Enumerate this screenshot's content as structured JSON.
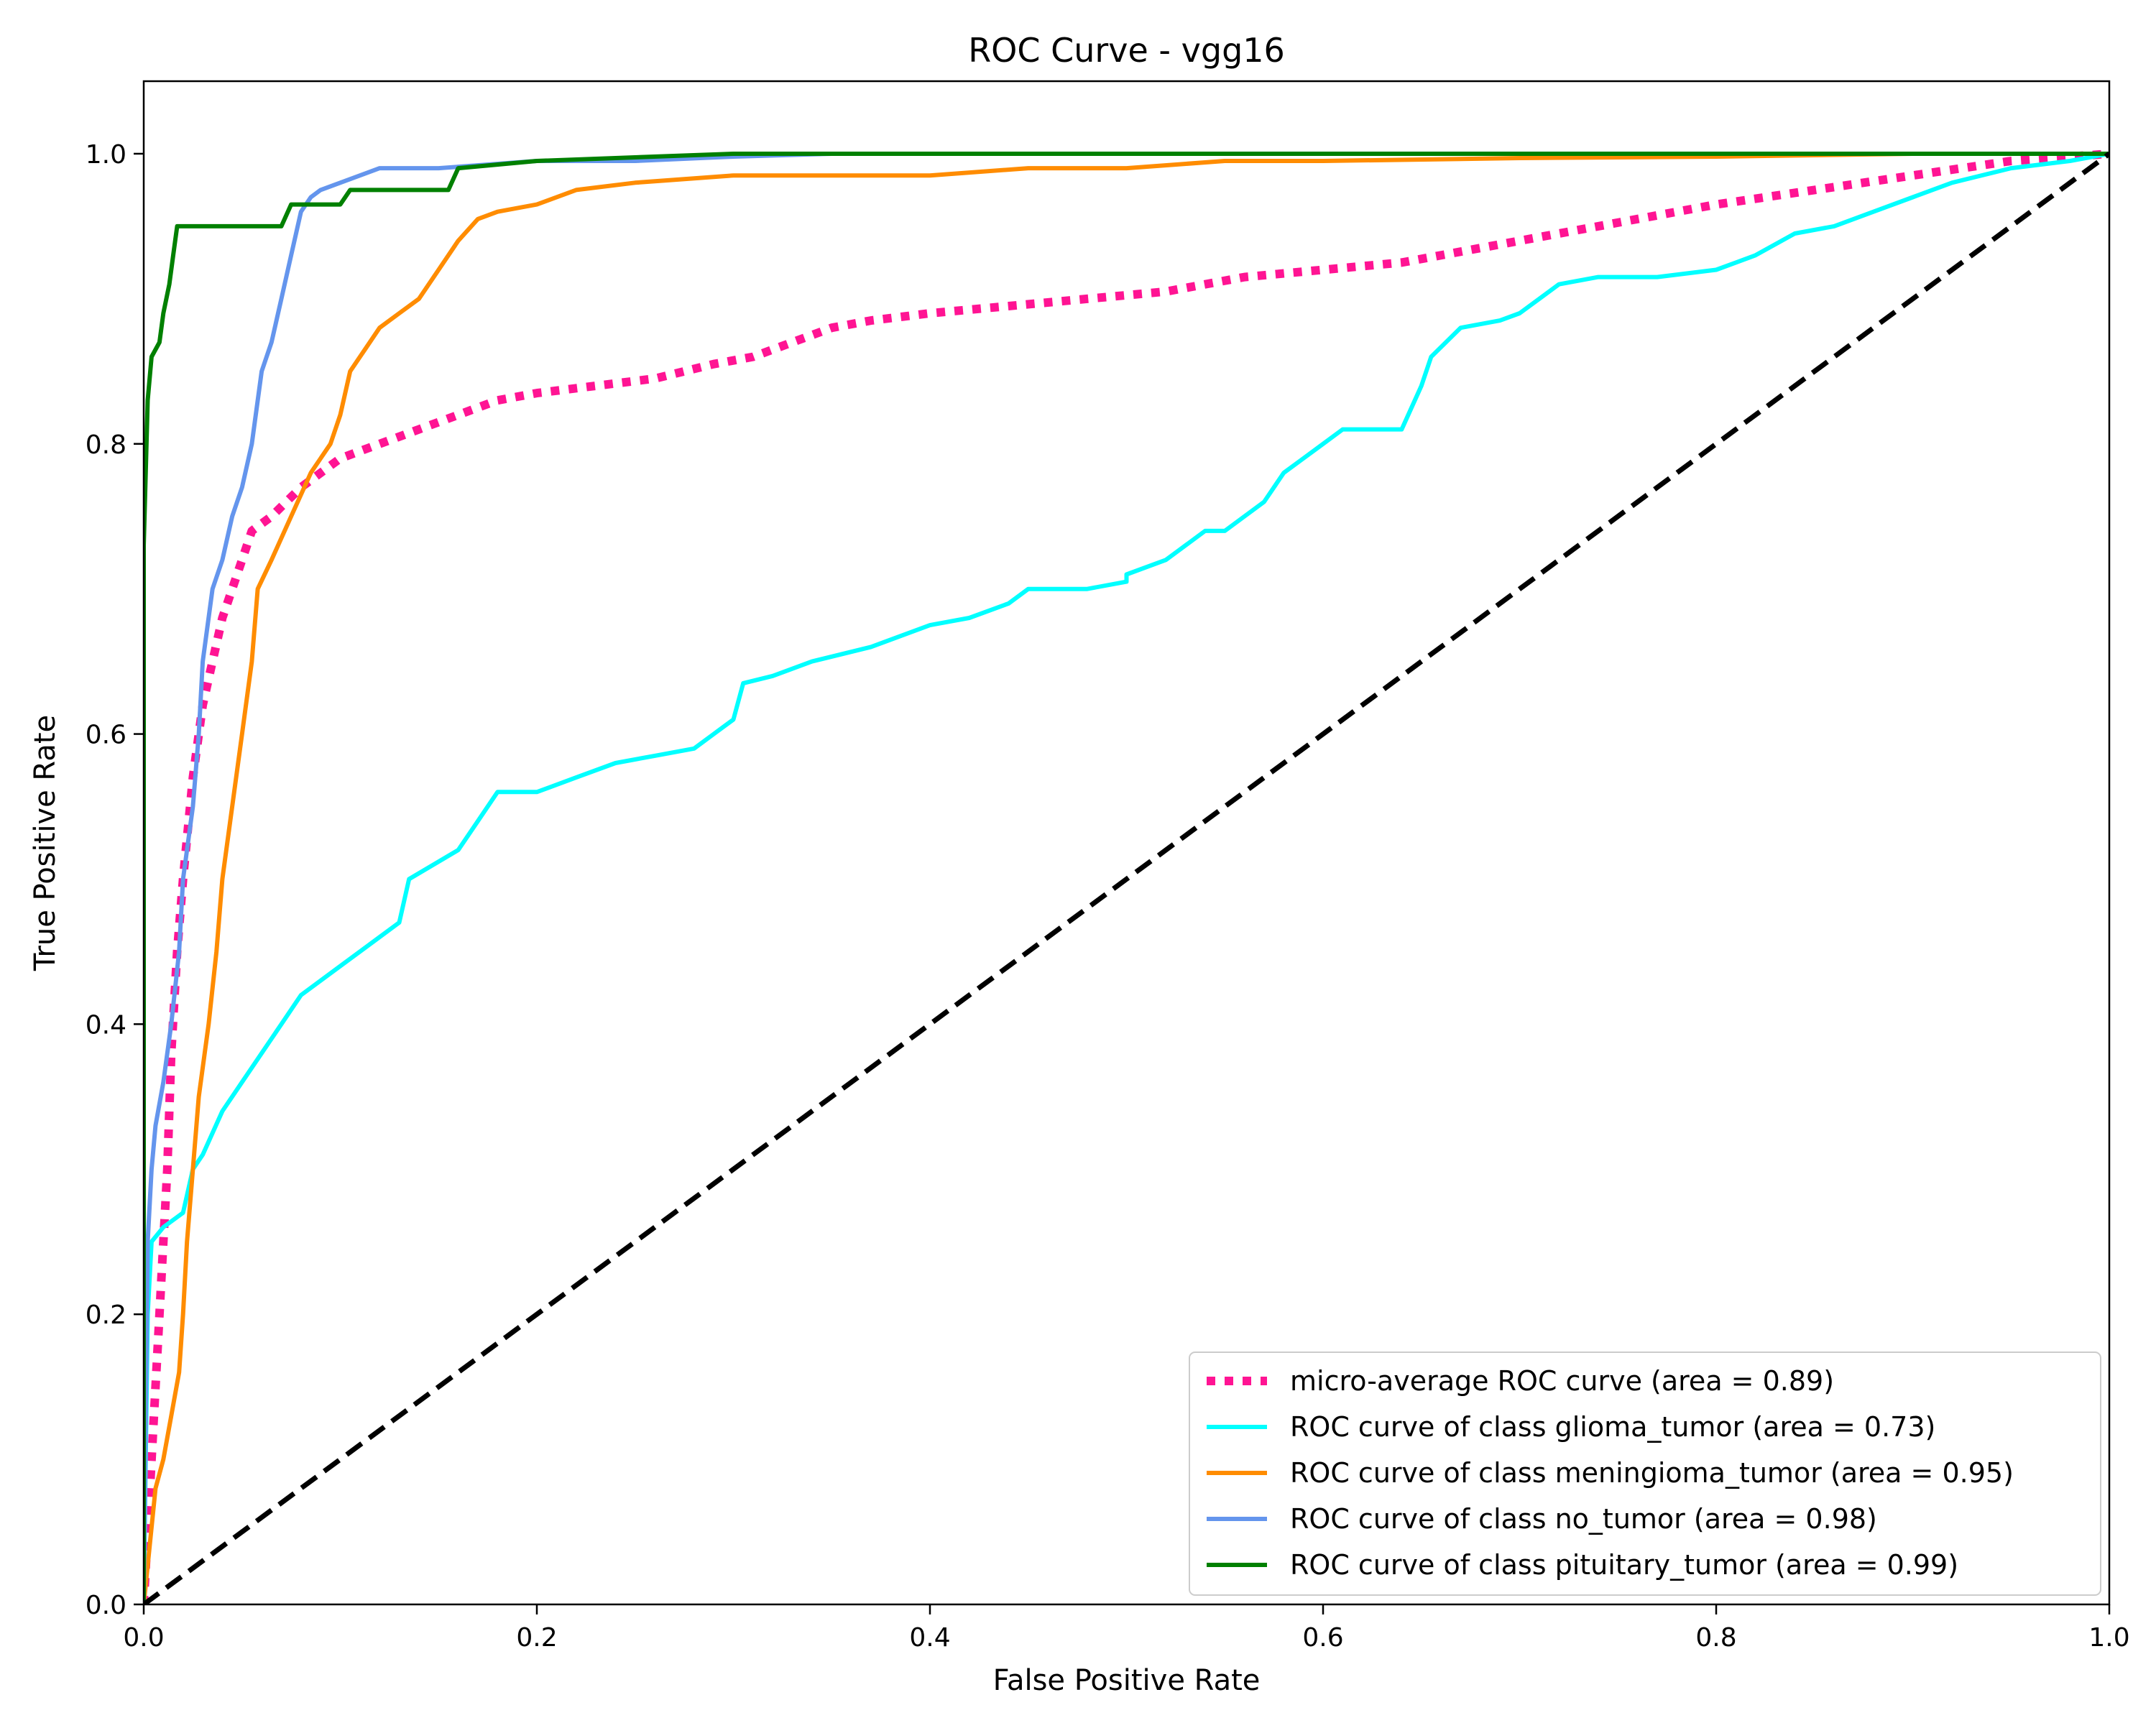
{
  "chart_data": {
    "type": "line",
    "title": "ROC Curve - vgg16",
    "xlabel": "False Positive Rate",
    "ylabel": "True Positive Rate",
    "xlim": [
      0.0,
      1.0
    ],
    "ylim": [
      0.0,
      1.05
    ],
    "x_ticks": [
      "0.0",
      "0.2",
      "0.4",
      "0.6",
      "0.8",
      "1.0"
    ],
    "y_ticks": [
      "0.0",
      "0.2",
      "0.4",
      "0.6",
      "0.8",
      "1.0"
    ],
    "grid": false,
    "legend_position": "lower-right",
    "series": [
      {
        "name": "micro-average ROC curve (area = 0.89)",
        "color": "#ff1493",
        "style": "dotted",
        "points": [
          [
            0,
            0
          ],
          [
            0.002,
            0.05
          ],
          [
            0.004,
            0.1
          ],
          [
            0.006,
            0.15
          ],
          [
            0.008,
            0.2
          ],
          [
            0.01,
            0.25
          ],
          [
            0.012,
            0.3
          ],
          [
            0.014,
            0.38
          ],
          [
            0.017,
            0.45
          ],
          [
            0.02,
            0.5
          ],
          [
            0.025,
            0.57
          ],
          [
            0.03,
            0.62
          ],
          [
            0.035,
            0.65
          ],
          [
            0.04,
            0.68
          ],
          [
            0.045,
            0.7
          ],
          [
            0.05,
            0.72
          ],
          [
            0.055,
            0.74
          ],
          [
            0.065,
            0.75
          ],
          [
            0.08,
            0.77
          ],
          [
            0.1,
            0.79
          ],
          [
            0.12,
            0.8
          ],
          [
            0.14,
            0.81
          ],
          [
            0.16,
            0.82
          ],
          [
            0.18,
            0.83
          ],
          [
            0.2,
            0.835
          ],
          [
            0.23,
            0.84
          ],
          [
            0.26,
            0.845
          ],
          [
            0.29,
            0.855
          ],
          [
            0.31,
            0.86
          ],
          [
            0.33,
            0.87
          ],
          [
            0.35,
            0.88
          ],
          [
            0.37,
            0.885
          ],
          [
            0.4,
            0.89
          ],
          [
            0.44,
            0.895
          ],
          [
            0.48,
            0.9
          ],
          [
            0.52,
            0.905
          ],
          [
            0.56,
            0.915
          ],
          [
            0.6,
            0.92
          ],
          [
            0.64,
            0.925
          ],
          [
            0.68,
            0.935
          ],
          [
            0.72,
            0.945
          ],
          [
            0.76,
            0.955
          ],
          [
            0.8,
            0.965
          ],
          [
            0.85,
            0.975
          ],
          [
            0.9,
            0.985
          ],
          [
            0.95,
            0.995
          ],
          [
            1.0,
            1.0
          ]
        ]
      },
      {
        "name": "ROC curve of class glioma_tumor (area = 0.73)",
        "color": "#00ffff",
        "style": "solid",
        "points": [
          [
            0,
            0
          ],
          [
            0.002,
            0.2
          ],
          [
            0.004,
            0.25
          ],
          [
            0.01,
            0.26
          ],
          [
            0.02,
            0.27
          ],
          [
            0.025,
            0.3
          ],
          [
            0.03,
            0.31
          ],
          [
            0.04,
            0.34
          ],
          [
            0.05,
            0.36
          ],
          [
            0.06,
            0.38
          ],
          [
            0.07,
            0.4
          ],
          [
            0.08,
            0.42
          ],
          [
            0.1,
            0.44
          ],
          [
            0.12,
            0.46
          ],
          [
            0.13,
            0.47
          ],
          [
            0.135,
            0.5
          ],
          [
            0.16,
            0.52
          ],
          [
            0.17,
            0.54
          ],
          [
            0.18,
            0.56
          ],
          [
            0.2,
            0.56
          ],
          [
            0.22,
            0.57
          ],
          [
            0.24,
            0.58
          ],
          [
            0.26,
            0.585
          ],
          [
            0.28,
            0.59
          ],
          [
            0.29,
            0.6
          ],
          [
            0.3,
            0.61
          ],
          [
            0.305,
            0.635
          ],
          [
            0.32,
            0.64
          ],
          [
            0.34,
            0.65
          ],
          [
            0.37,
            0.66
          ],
          [
            0.4,
            0.675
          ],
          [
            0.42,
            0.68
          ],
          [
            0.44,
            0.69
          ],
          [
            0.45,
            0.7
          ],
          [
            0.48,
            0.7
          ],
          [
            0.5,
            0.705
          ],
          [
            0.5,
            0.71
          ],
          [
            0.52,
            0.72
          ],
          [
            0.53,
            0.73
          ],
          [
            0.54,
            0.74
          ],
          [
            0.55,
            0.74
          ],
          [
            0.57,
            0.76
          ],
          [
            0.58,
            0.78
          ],
          [
            0.59,
            0.79
          ],
          [
            0.6,
            0.8
          ],
          [
            0.61,
            0.81
          ],
          [
            0.64,
            0.81
          ],
          [
            0.65,
            0.84
          ],
          [
            0.655,
            0.86
          ],
          [
            0.67,
            0.88
          ],
          [
            0.69,
            0.885
          ],
          [
            0.7,
            0.89
          ],
          [
            0.71,
            0.9
          ],
          [
            0.72,
            0.91
          ],
          [
            0.74,
            0.915
          ],
          [
            0.77,
            0.915
          ],
          [
            0.8,
            0.92
          ],
          [
            0.82,
            0.93
          ],
          [
            0.84,
            0.945
          ],
          [
            0.86,
            0.95
          ],
          [
            0.88,
            0.96
          ],
          [
            0.9,
            0.97
          ],
          [
            0.92,
            0.98
          ],
          [
            0.95,
            0.99
          ],
          [
            0.98,
            0.995
          ],
          [
            1.0,
            1.0
          ]
        ]
      },
      {
        "name": "ROC curve of class meningioma_tumor (area = 0.95)",
        "color": "#ff8c00",
        "style": "solid",
        "points": [
          [
            0,
            0
          ],
          [
            0.003,
            0.04
          ],
          [
            0.006,
            0.08
          ],
          [
            0.01,
            0.1
          ],
          [
            0.014,
            0.13
          ],
          [
            0.018,
            0.16
          ],
          [
            0.02,
            0.2
          ],
          [
            0.022,
            0.25
          ],
          [
            0.025,
            0.3
          ],
          [
            0.028,
            0.35
          ],
          [
            0.033,
            0.4
          ],
          [
            0.037,
            0.45
          ],
          [
            0.04,
            0.5
          ],
          [
            0.045,
            0.55
          ],
          [
            0.05,
            0.6
          ],
          [
            0.055,
            0.65
          ],
          [
            0.058,
            0.7
          ],
          [
            0.065,
            0.72
          ],
          [
            0.075,
            0.75
          ],
          [
            0.085,
            0.78
          ],
          [
            0.09,
            0.79
          ],
          [
            0.095,
            0.8
          ],
          [
            0.1,
            0.82
          ],
          [
            0.105,
            0.85
          ],
          [
            0.11,
            0.86
          ],
          [
            0.12,
            0.88
          ],
          [
            0.13,
            0.89
          ],
          [
            0.14,
            0.9
          ],
          [
            0.15,
            0.92
          ],
          [
            0.16,
            0.94
          ],
          [
            0.17,
            0.955
          ],
          [
            0.18,
            0.96
          ],
          [
            0.2,
            0.965
          ],
          [
            0.22,
            0.975
          ],
          [
            0.25,
            0.98
          ],
          [
            0.3,
            0.985
          ],
          [
            0.35,
            0.985
          ],
          [
            0.4,
            0.985
          ],
          [
            0.45,
            0.99
          ],
          [
            0.5,
            0.99
          ],
          [
            0.55,
            0.995
          ],
          [
            0.6,
            0.995
          ],
          [
            0.7,
            0.997
          ],
          [
            0.8,
            0.998
          ],
          [
            0.85,
            0.999
          ],
          [
            0.9,
            1.0
          ],
          [
            1.0,
            1.0
          ]
        ]
      },
      {
        "name": "ROC curve of class no_tumor (area = 0.98)",
        "color": "#6495ed",
        "style": "solid",
        "points": [
          [
            0,
            0
          ],
          [
            0.002,
            0.25
          ],
          [
            0.004,
            0.3
          ],
          [
            0.006,
            0.33
          ],
          [
            0.01,
            0.36
          ],
          [
            0.014,
            0.4
          ],
          [
            0.018,
            0.45
          ],
          [
            0.02,
            0.5
          ],
          [
            0.025,
            0.55
          ],
          [
            0.028,
            0.6
          ],
          [
            0.03,
            0.65
          ],
          [
            0.035,
            0.7
          ],
          [
            0.04,
            0.72
          ],
          [
            0.045,
            0.75
          ],
          [
            0.05,
            0.77
          ],
          [
            0.055,
            0.8
          ],
          [
            0.06,
            0.85
          ],
          [
            0.065,
            0.87
          ],
          [
            0.07,
            0.9
          ],
          [
            0.075,
            0.93
          ],
          [
            0.08,
            0.96
          ],
          [
            0.085,
            0.97
          ],
          [
            0.09,
            0.975
          ],
          [
            0.1,
            0.98
          ],
          [
            0.11,
            0.985
          ],
          [
            0.12,
            0.99
          ],
          [
            0.15,
            0.99
          ],
          [
            0.2,
            0.995
          ],
          [
            0.25,
            0.995
          ],
          [
            0.3,
            0.998
          ],
          [
            0.35,
            1.0
          ],
          [
            1.0,
            1.0
          ]
        ]
      },
      {
        "name": "ROC curve of class pituitary_tumor (area = 0.99)",
        "color": "#008000",
        "style": "solid",
        "points": [
          [
            0,
            0
          ],
          [
            0,
            0.73
          ],
          [
            0.002,
            0.83
          ],
          [
            0.004,
            0.86
          ],
          [
            0.008,
            0.87
          ],
          [
            0.01,
            0.89
          ],
          [
            0.013,
            0.91
          ],
          [
            0.015,
            0.93
          ],
          [
            0.017,
            0.95
          ],
          [
            0.07,
            0.95
          ],
          [
            0.075,
            0.965
          ],
          [
            0.1,
            0.965
          ],
          [
            0.105,
            0.975
          ],
          [
            0.155,
            0.975
          ],
          [
            0.16,
            0.99
          ],
          [
            0.2,
            0.995
          ],
          [
            0.3,
            1.0
          ],
          [
            1.0,
            1.0
          ]
        ]
      },
      {
        "name": "",
        "color": "#000000",
        "style": "dashed",
        "points": [
          [
            0,
            0
          ],
          [
            1,
            1
          ]
        ]
      }
    ]
  }
}
